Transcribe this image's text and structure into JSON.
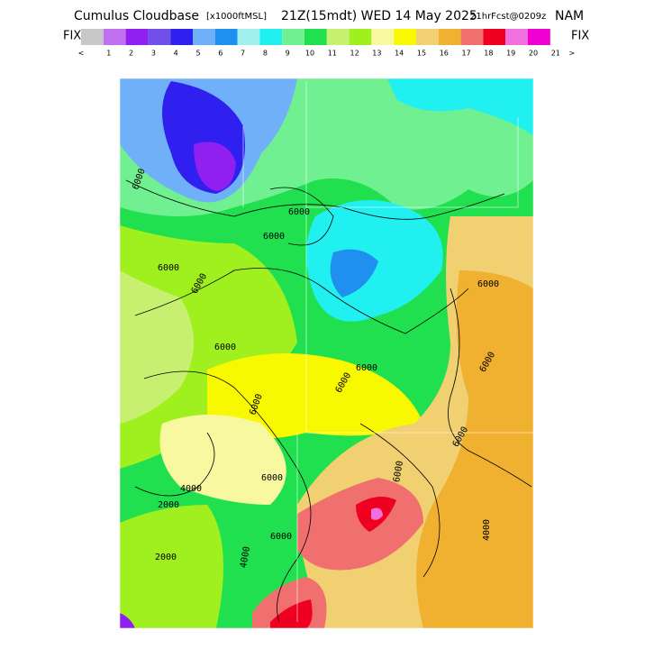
{
  "header": {
    "title": "Cumulus Cloudbase",
    "units": "[x1000ftMSL]",
    "time": "21Z(15mdt) WED 14 May 2025",
    "forecast": "21hrFcst@0209z",
    "model": "NAM"
  },
  "legend": {
    "left": "FIX",
    "right": "FIX",
    "labels": [
      "<",
      "1",
      "2",
      "3",
      "4",
      "5",
      "6",
      "7",
      "8",
      "9",
      "10",
      "11",
      "12",
      "13",
      "14",
      "15",
      "16",
      "17",
      "18",
      "19",
      "20",
      "21",
      ">"
    ]
  },
  "map": {
    "contour_labels": [
      "6000",
      "6000",
      "6000",
      "6000",
      "6000",
      "6000",
      "6000",
      "6000",
      "6000",
      "6000",
      "6000",
      "6000",
      "6000",
      "6000",
      "6000",
      "2000",
      "2000",
      "4000",
      "4000",
      "4000"
    ]
  }
}
